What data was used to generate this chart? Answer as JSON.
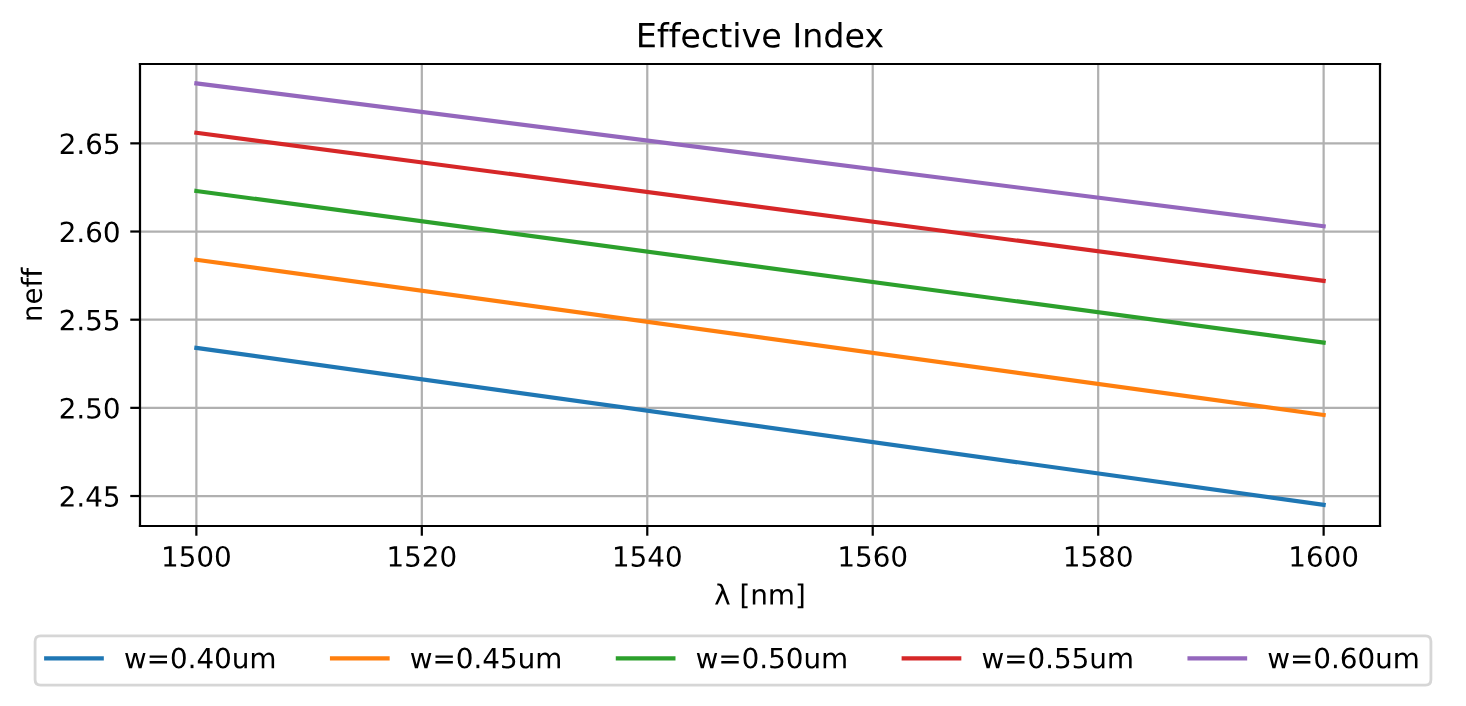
{
  "chart_data": {
    "type": "line",
    "title": "Effective Index",
    "xlabel": "λ [nm]",
    "ylabel": "neff",
    "x": [
      1500,
      1600
    ],
    "series": [
      {
        "name": "w=0.40um",
        "color": "#1f77b4",
        "values": [
          2.534,
          2.445
        ]
      },
      {
        "name": "w=0.45um",
        "color": "#ff7f0e",
        "values": [
          2.584,
          2.496
        ]
      },
      {
        "name": "w=0.50um",
        "color": "#2ca02c",
        "values": [
          2.623,
          2.537
        ]
      },
      {
        "name": "w=0.55um",
        "color": "#d62728",
        "values": [
          2.656,
          2.572
        ]
      },
      {
        "name": "w=0.60um",
        "color": "#9467bd",
        "values": [
          2.684,
          2.603
        ]
      }
    ],
    "xlim": [
      1495,
      1605
    ],
    "xticks": [
      1500,
      1520,
      1540,
      1560,
      1580,
      1600
    ],
    "ylim": [
      2.433,
      2.695
    ],
    "yticks": [
      2.45,
      {
        "value": 2.5,
        "label": "2.50"
      },
      2.55,
      {
        "value": 2.6,
        "label": "2.60"
      },
      2.65
    ],
    "grid": true,
    "legend": "bottom",
    "marker": "none",
    "line_style": "solid"
  }
}
